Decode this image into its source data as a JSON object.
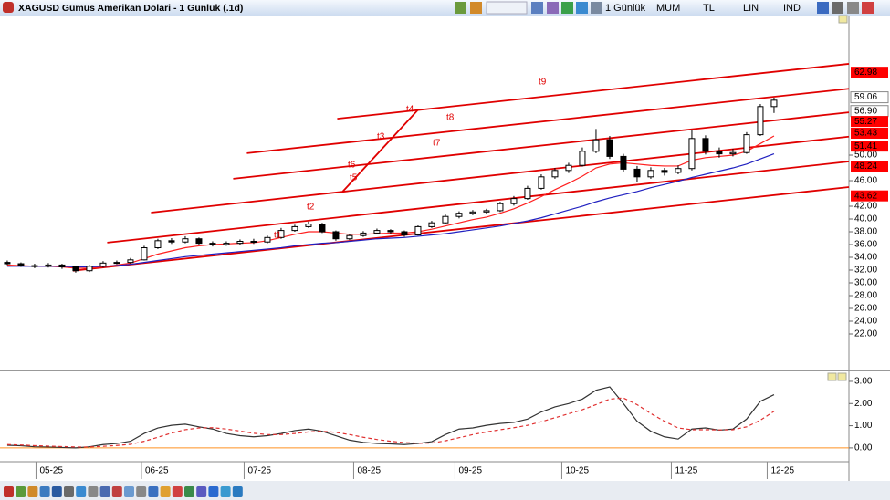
{
  "window": {
    "title": "XAGUSD Gümüs Amerikan Dolari - 1 Günlük (.1d)",
    "toolbar": [
      "1 Günlük",
      "MUM",
      "TL",
      "LIN",
      "IND"
    ]
  },
  "chart_data": [
    {
      "type": "candlestick",
      "xlim": [
        -0.53,
        61.47
      ],
      "ylim": [
        16.43,
        71.86
      ],
      "grid": false,
      "up_color": "#ffffff",
      "down_color": "#000000",
      "yticks": [
        {
          "value": 22,
          "label": "22.00"
        },
        {
          "value": 24,
          "label": "24.00"
        },
        {
          "value": 26,
          "label": "26.00"
        },
        {
          "value": 28,
          "label": "28.00"
        },
        {
          "value": 30,
          "label": "30.00"
        },
        {
          "value": 32,
          "label": "32.00"
        },
        {
          "value": 34,
          "label": "34.00"
        },
        {
          "value": 36,
          "label": "36.00"
        },
        {
          "value": 38,
          "label": "38.00"
        },
        {
          "value": 40,
          "label": "40.00"
        },
        {
          "value": 42,
          "label": "42.00"
        },
        {
          "value": 46,
          "label": "46.00"
        },
        {
          "value": 50,
          "label": "50.00"
        }
      ],
      "ohlc": [
        [
          33.2,
          33.5,
          32.8,
          33.0
        ],
        [
          33.0,
          33.2,
          32.5,
          32.7
        ],
        [
          32.7,
          33.0,
          32.3,
          32.6
        ],
        [
          32.6,
          33.1,
          32.4,
          32.8
        ],
        [
          32.8,
          33.0,
          32.2,
          32.5
        ],
        [
          32.5,
          32.7,
          31.6,
          31.9
        ],
        [
          31.9,
          32.8,
          31.7,
          32.6
        ],
        [
          32.6,
          33.4,
          32.4,
          33.1
        ],
        [
          33.1,
          33.5,
          32.9,
          33.2
        ],
        [
          33.2,
          33.9,
          33.0,
          33.6
        ],
        [
          33.6,
          35.8,
          33.5,
          35.5
        ],
        [
          35.5,
          36.9,
          35.3,
          36.6
        ],
        [
          36.6,
          37.0,
          36.1,
          36.4
        ],
        [
          36.4,
          37.3,
          36.2,
          36.9
        ],
        [
          36.9,
          37.1,
          35.9,
          36.2
        ],
        [
          36.2,
          36.5,
          35.7,
          36.0
        ],
        [
          36.0,
          36.5,
          35.8,
          36.2
        ],
        [
          36.2,
          36.8,
          36.0,
          36.5
        ],
        [
          36.5,
          36.9,
          36.1,
          36.4
        ],
        [
          36.4,
          37.4,
          36.2,
          37.1
        ],
        [
          37.1,
          38.6,
          36.9,
          38.2
        ],
        [
          38.2,
          39.1,
          38.0,
          38.8
        ],
        [
          38.8,
          39.6,
          38.6,
          39.2
        ],
        [
          39.2,
          39.4,
          37.8,
          38.0
        ],
        [
          38.0,
          38.2,
          36.6,
          36.9
        ],
        [
          36.9,
          37.7,
          36.7,
          37.4
        ],
        [
          37.4,
          38.1,
          37.2,
          37.8
        ],
        [
          37.8,
          38.5,
          37.6,
          38.2
        ],
        [
          38.2,
          38.4,
          37.7,
          38.0
        ],
        [
          38.0,
          38.2,
          37.2,
          37.5
        ],
        [
          37.5,
          39.0,
          37.4,
          38.8
        ],
        [
          38.8,
          39.7,
          38.6,
          39.4
        ],
        [
          39.4,
          40.7,
          39.2,
          40.4
        ],
        [
          40.4,
          41.2,
          40.1,
          40.9
        ],
        [
          40.9,
          41.4,
          40.6,
          41.1
        ],
        [
          41.1,
          41.6,
          40.8,
          41.3
        ],
        [
          41.3,
          42.7,
          41.1,
          42.4
        ],
        [
          42.4,
          43.6,
          42.1,
          43.2
        ],
        [
          43.2,
          45.2,
          43.0,
          44.8
        ],
        [
          44.8,
          47.0,
          44.6,
          46.6
        ],
        [
          46.6,
          48.0,
          46.3,
          47.6
        ],
        [
          47.6,
          48.8,
          47.2,
          48.4
        ],
        [
          48.4,
          51.2,
          48.2,
          50.6
        ],
        [
          50.6,
          54.1,
          50.3,
          52.4
        ],
        [
          52.4,
          53.0,
          49.4,
          49.8
        ],
        [
          49.8,
          50.2,
          47.3,
          47.8
        ],
        [
          47.8,
          48.3,
          45.8,
          46.6
        ],
        [
          46.6,
          48.1,
          46.3,
          47.6
        ],
        [
          47.6,
          48.0,
          46.8,
          47.3
        ],
        [
          47.3,
          48.4,
          47.0,
          47.9
        ],
        [
          47.9,
          54.0,
          47.6,
          52.6
        ],
        [
          52.6,
          53.1,
          50.1,
          50.6
        ],
        [
          50.6,
          51.2,
          49.6,
          50.2
        ],
        [
          50.2,
          51.0,
          49.8,
          50.4
        ],
        [
          50.4,
          53.6,
          50.2,
          53.2
        ],
        [
          53.2,
          58.0,
          53.0,
          57.6
        ],
        [
          57.6,
          59.0,
          56.6,
          58.6
        ]
      ],
      "series": [
        {
          "color": "#ff2020",
          "values": [
            32.8,
            32.7,
            32.6,
            32.6,
            32.5,
            32.3,
            32.3,
            32.5,
            32.8,
            33.1,
            33.8,
            34.5,
            35.0,
            35.5,
            35.8,
            36.0,
            36.1,
            36.2,
            36.3,
            36.6,
            37.1,
            37.6,
            38.0,
            38.0,
            37.8,
            37.6,
            37.6,
            37.7,
            37.8,
            37.8,
            38.0,
            38.4,
            38.9,
            39.4,
            39.9,
            40.3,
            40.9,
            41.6,
            42.5,
            43.5,
            44.6,
            45.6,
            46.7,
            48.0,
            48.6,
            48.8,
            48.6,
            48.4,
            48.3,
            48.3,
            49.2,
            49.6,
            49.8,
            50.0,
            50.6,
            51.8,
            53.0
          ]
        },
        {
          "color": "#2020c0",
          "values": [
            32.6,
            32.6,
            32.6,
            32.6,
            32.6,
            32.5,
            32.5,
            32.6,
            32.7,
            32.9,
            33.2,
            33.5,
            33.8,
            34.1,
            34.3,
            34.5,
            34.7,
            34.9,
            35.1,
            35.3,
            35.5,
            35.8,
            36.0,
            36.2,
            36.3,
            36.5,
            36.7,
            36.9,
            37.0,
            37.1,
            37.3,
            37.5,
            37.7,
            38.0,
            38.3,
            38.6,
            38.9,
            39.3,
            39.7,
            40.2,
            40.8,
            41.4,
            42.0,
            42.7,
            43.3,
            43.8,
            44.3,
            44.9,
            45.4,
            45.9,
            46.5,
            47.0,
            47.5,
            48.0,
            48.6,
            49.4,
            50.2
          ]
        }
      ],
      "line_color": "#e00000",
      "lines": [
        {
          "x": [
            24.1,
            61.47
          ],
          "y": [
            55.7,
            64.3
          ]
        },
        {
          "x": [
            17.5,
            61.47
          ],
          "y": [
            50.3,
            60.4
          ]
        },
        {
          "x": [
            16.5,
            61.47
          ],
          "y": [
            46.3,
            56.7
          ]
        },
        {
          "x": [
            10.5,
            61.47
          ],
          "y": [
            41.0,
            52.9
          ]
        },
        {
          "x": [
            7.3,
            61.47
          ],
          "y": [
            36.3,
            49.0
          ]
        },
        {
          "x": [
            4.8,
            61.47
          ],
          "y": [
            31.9,
            45.0
          ]
        },
        {
          "x": [
            30.0,
            24.5
          ],
          "y": [
            57.1,
            44.3
          ]
        }
      ],
      "annotations": [
        "t9",
        "t8",
        "t7",
        "t4",
        "t3",
        "t6",
        "t5",
        "t2",
        "t1"
      ],
      "price_labels": [
        {
          "value": 62.98,
          "color": "#ff0000"
        },
        {
          "value": 59.06,
          "color": "#ffffff"
        },
        {
          "value": 56.9,
          "label": "56.90",
          "color": "#ffffff"
        },
        {
          "value": 55.27,
          "color": "#ff0000"
        },
        {
          "value": 53.43,
          "color": "#ff0000"
        },
        {
          "value": 51.41,
          "color": "#ff0000"
        },
        {
          "value": 48.24,
          "color": "#ff0000"
        },
        {
          "value": 43.62,
          "color": "#ff0000"
        }
      ]
    },
    {
      "type": "line",
      "xlim": [
        -0.53,
        61.47
      ],
      "ylim": [
        -0.58,
        3.41
      ],
      "zero_line_color": "#ff9020",
      "yticks": [
        {
          "value": 0,
          "label": "0.00"
        },
        {
          "value": 1,
          "label": "1.00"
        },
        {
          "value": 2,
          "label": "2.00"
        },
        {
          "value": 3,
          "label": "3.00"
        }
      ],
      "xticks": [
        {
          "value": 2.1,
          "label": "05-25"
        },
        {
          "value": 9.8,
          "label": "06-25"
        },
        {
          "value": 17.3,
          "label": "07-25"
        },
        {
          "value": 25.3,
          "label": "08-25"
        },
        {
          "value": 32.7,
          "label": "09-25"
        },
        {
          "value": 40.5,
          "label": "10-25"
        },
        {
          "value": 48.5,
          "label": "11-25"
        },
        {
          "value": 55.5,
          "label": "12-25"
        }
      ],
      "series": [
        {
          "color": "#333333",
          "dash": false,
          "values": [
            0.12,
            0.1,
            0.05,
            0.04,
            0.02,
            0.0,
            0.05,
            0.15,
            0.2,
            0.3,
            0.65,
            0.9,
            1.02,
            1.07,
            0.95,
            0.85,
            0.65,
            0.55,
            0.5,
            0.55,
            0.65,
            0.78,
            0.85,
            0.75,
            0.55,
            0.35,
            0.25,
            0.2,
            0.18,
            0.15,
            0.2,
            0.28,
            0.6,
            0.85,
            0.9,
            1.02,
            1.1,
            1.15,
            1.3,
            1.62,
            1.85,
            2.0,
            2.2,
            2.6,
            2.75,
            2.0,
            1.2,
            0.75,
            0.5,
            0.4,
            0.85,
            0.9,
            0.8,
            0.85,
            1.3,
            2.1,
            2.4
          ]
        },
        {
          "color": "#e03030",
          "dash": true,
          "values": [
            0.15,
            0.13,
            0.1,
            0.08,
            0.06,
            0.04,
            0.04,
            0.07,
            0.11,
            0.16,
            0.3,
            0.48,
            0.67,
            0.82,
            0.9,
            0.91,
            0.85,
            0.76,
            0.66,
            0.6,
            0.6,
            0.65,
            0.72,
            0.75,
            0.7,
            0.6,
            0.48,
            0.38,
            0.3,
            0.24,
            0.21,
            0.22,
            0.32,
            0.46,
            0.6,
            0.72,
            0.82,
            0.91,
            1.02,
            1.18,
            1.36,
            1.54,
            1.72,
            1.95,
            2.2,
            2.25,
            1.95,
            1.55,
            1.2,
            0.9,
            0.82,
            0.82,
            0.81,
            0.82,
            0.95,
            1.25,
            1.65
          ]
        }
      ]
    }
  ]
}
